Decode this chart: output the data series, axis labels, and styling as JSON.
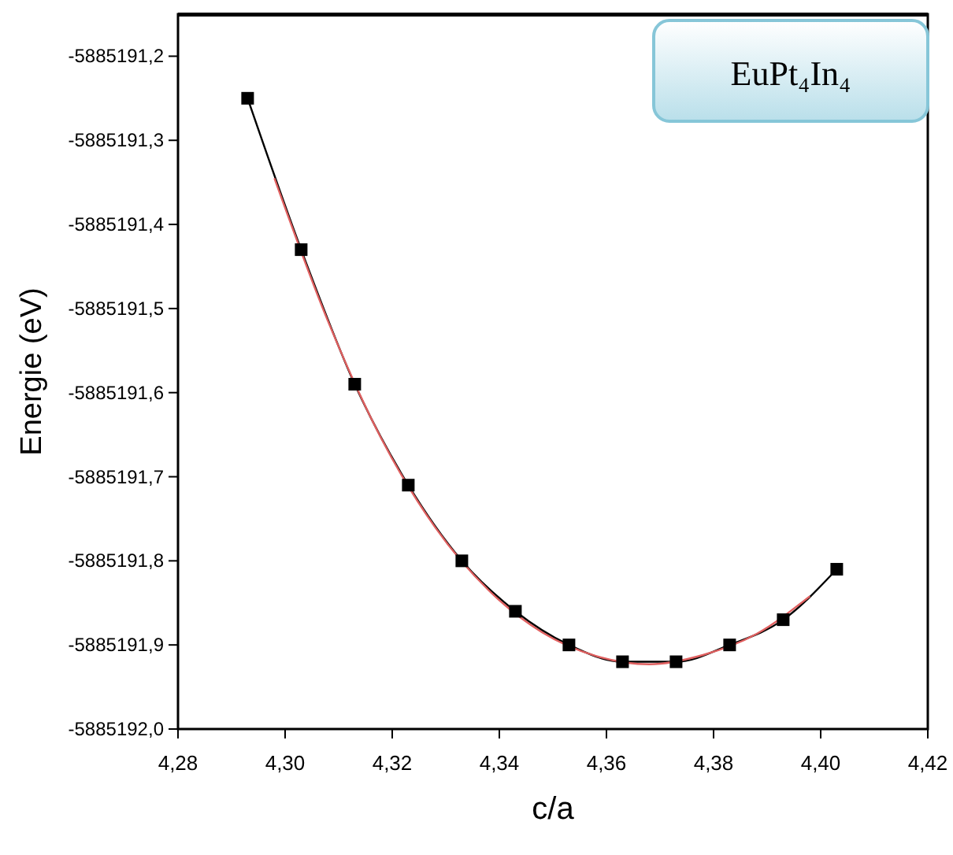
{
  "chart_data": {
    "type": "line",
    "xlabel": "c/a",
    "ylabel": "Energie (eV)",
    "annotations": [
      "EuPt₄In₄"
    ],
    "xlim": [
      4.28,
      4.42
    ],
    "ylim": [
      -5885192.0,
      -5885191.15
    ],
    "xticks": [
      {
        "value": 4.28,
        "label": "4,28"
      },
      {
        "value": 4.3,
        "label": "4,30"
      },
      {
        "value": 4.32,
        "label": "4,32"
      },
      {
        "value": 4.34,
        "label": "4,34"
      },
      {
        "value": 4.36,
        "label": "4,36"
      },
      {
        "value": 4.38,
        "label": "4,38"
      },
      {
        "value": 4.4,
        "label": "4,40"
      },
      {
        "value": 4.42,
        "label": "4,42"
      }
    ],
    "yticks": [
      {
        "value": -5885192.0,
        "label": "-5885192,0"
      },
      {
        "value": -5885191.9,
        "label": "-5885191,9"
      },
      {
        "value": -5885191.8,
        "label": "-5885191,8"
      },
      {
        "value": -5885191.7,
        "label": "-5885191,7"
      },
      {
        "value": -5885191.6,
        "label": "-5885191,6"
      },
      {
        "value": -5885191.5,
        "label": "-5885191,5"
      },
      {
        "value": -5885191.4,
        "label": "-5885191,4"
      },
      {
        "value": -5885191.3,
        "label": "-5885191,3"
      },
      {
        "value": -5885191.2,
        "label": "-5885191,2"
      }
    ],
    "grid": false,
    "x": [
      4.293,
      4.303,
      4.313,
      4.323,
      4.333,
      4.343,
      4.353,
      4.363,
      4.373,
      4.383,
      4.393,
      4.403
    ],
    "series": [
      {
        "color": "#000000",
        "marker": "square",
        "values": [
          -5885191.25,
          -5885191.43,
          -5885191.59,
          -5885191.71,
          -5885191.8,
          -5885191.86,
          -5885191.9,
          -5885191.92,
          -5885191.92,
          -5885191.9,
          -5885191.87,
          -5885191.81
        ]
      },
      {
        "type": "line",
        "color": "#e06060",
        "marker": "none",
        "x": [
          4.298,
          4.308,
          4.318,
          4.328,
          4.338,
          4.348,
          4.358,
          4.368,
          4.378,
          4.388,
          4.398
        ],
        "values": [
          -5885191.345,
          -5885191.515,
          -5885191.655,
          -5885191.76,
          -5885191.835,
          -5885191.885,
          -5885191.913,
          -5885191.923,
          -5885191.912,
          -5885191.887,
          -5885191.842
        ]
      }
    ]
  }
}
